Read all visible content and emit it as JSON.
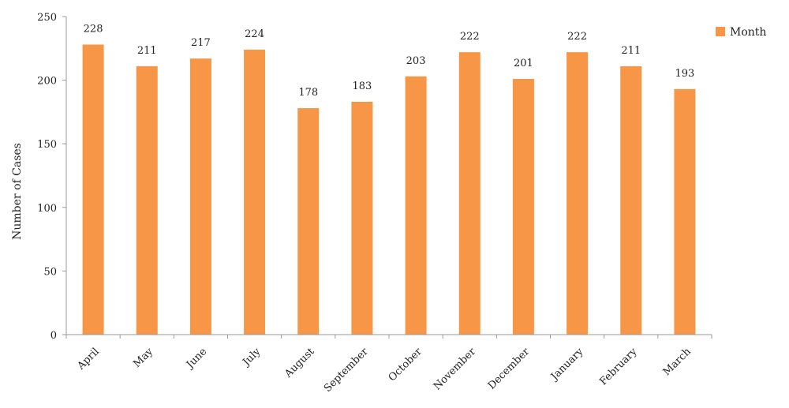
{
  "chart_data": {
    "type": "bar",
    "categories": [
      "April",
      "May",
      "June",
      "July",
      "August",
      "September",
      "October",
      "November",
      "December",
      "January",
      "February",
      "March"
    ],
    "series": [
      {
        "name": "Month",
        "values": [
          228,
          211,
          217,
          224,
          178,
          183,
          203,
          222,
          201,
          222,
          211,
          193
        ],
        "color": "#F79646"
      }
    ],
    "ylabel": "Number of Cases",
    "xlabel": "",
    "ylim": [
      0,
      250
    ],
    "yticks": [
      0,
      50,
      100,
      150,
      200,
      250
    ],
    "grid": false,
    "legend_position": "top-right",
    "data_labels": true
  }
}
